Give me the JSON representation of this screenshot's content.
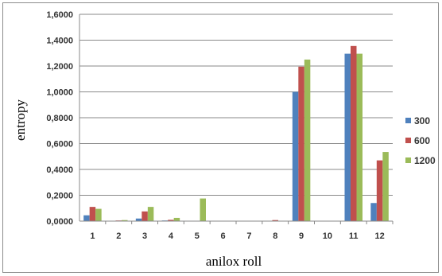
{
  "chart_data": {
    "type": "bar",
    "xlabel": "anilox roll",
    "ylabel": "entropy",
    "ylim": [
      0,
      1.6
    ],
    "ytick_values": [
      0,
      0.2,
      0.4,
      0.6,
      0.8,
      1.0,
      1.2,
      1.4,
      1.6
    ],
    "ytick_labels": [
      "0,0000",
      "0,2000",
      "0,4000",
      "0,6000",
      "0,8000",
      "1,0000",
      "1,2000",
      "1,4000",
      "1,6000"
    ],
    "categories": [
      "1",
      "2",
      "3",
      "4",
      "5",
      "6",
      "7",
      "8",
      "9",
      "10",
      "11",
      "12"
    ],
    "series": [
      {
        "name": "300",
        "color": "#4f81bd",
        "values": [
          0.045,
          0.0,
          0.02,
          0.005,
          0.0,
          0.0,
          0.0,
          0.0,
          1.0,
          0.0,
          1.295,
          0.14
        ]
      },
      {
        "name": "600",
        "color": "#c0504d",
        "values": [
          0.11,
          0.005,
          0.075,
          0.01,
          0.0,
          0.0,
          0.0,
          0.008,
          1.195,
          0.0,
          1.355,
          0.47
        ]
      },
      {
        "name": "1200",
        "color": "#9bbb59",
        "values": [
          0.095,
          0.008,
          0.11,
          0.025,
          0.175,
          0.0,
          0.0,
          0.0,
          1.25,
          0.0,
          1.295,
          0.535
        ]
      }
    ],
    "grid": "horizontal",
    "legend": "right"
  }
}
